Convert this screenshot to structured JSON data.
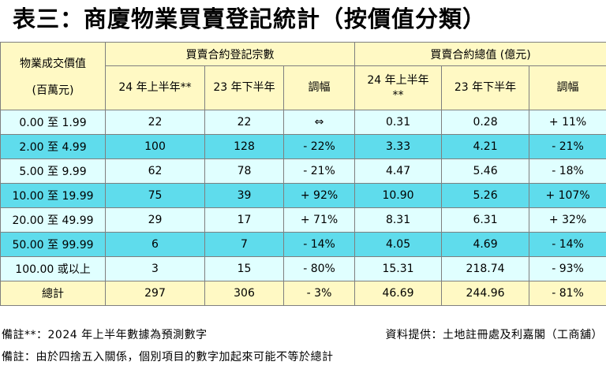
{
  "title": "表三：商廈物業買賣登記統計（按價值分類）",
  "header": {
    "col_value_line1": "物業成交價值",
    "col_value_line2": "(百萬元)",
    "group_count": "買賣合約登記宗數",
    "group_value": "買賣合約總值 (億元)",
    "count_h1_24": "24 年上半年**",
    "count_h2_23": "23 年下半年",
    "count_change": "調幅",
    "value_h1_24_line1": "24 年上半年",
    "value_h1_24_line2": "**",
    "value_h2_23": "23 年下半年",
    "value_change": "調幅"
  },
  "rows": [
    {
      "range": "0.00 至 1.99",
      "count_24h1": "22",
      "count_23h2": "22",
      "count_change": "⇔",
      "value_24h1": "0.31",
      "value_23h2": "0.28",
      "value_change": "+ 11%"
    },
    {
      "range": "2.00 至 4.99",
      "count_24h1": "100",
      "count_23h2": "128",
      "count_change": "- 22%",
      "value_24h1": "3.33",
      "value_23h2": "4.21",
      "value_change": "- 21%"
    },
    {
      "range": "5.00 至 9.99",
      "count_24h1": "62",
      "count_23h2": "78",
      "count_change": "- 21%",
      "value_24h1": "4.47",
      "value_23h2": "5.46",
      "value_change": "- 18%"
    },
    {
      "range": "10.00 至 19.99",
      "count_24h1": "75",
      "count_23h2": "39",
      "count_change": "+ 92%",
      "value_24h1": "10.90",
      "value_23h2": "5.26",
      "value_change": "+ 107%"
    },
    {
      "range": "20.00 至 49.99",
      "count_24h1": "29",
      "count_23h2": "17",
      "count_change": "+ 71%",
      "value_24h1": "8.31",
      "value_23h2": "6.31",
      "value_change": "+ 32%"
    },
    {
      "range": "50.00 至 99.99",
      "count_24h1": "6",
      "count_23h2": "7",
      "count_change": "- 14%",
      "value_24h1": "4.05",
      "value_23h2": "4.69",
      "value_change": "- 14%"
    },
    {
      "range": "100.00 或以上",
      "count_24h1": "3",
      "count_23h2": "15",
      "count_change": "- 80%",
      "value_24h1": "15.31",
      "value_23h2": "218.74",
      "value_change": "- 93%"
    }
  ],
  "total": {
    "label": "總計",
    "count_24h1": "297",
    "count_23h2": "306",
    "count_change": "- 3%",
    "value_24h1": "46.69",
    "value_23h2": "244.96",
    "value_change": "- 81%"
  },
  "notes": {
    "forecast": "備註**：2024 年上半年數據為預測數字",
    "source": "資料提供：土地註冊處及利嘉閣（工商舖）",
    "rounding": "備註：由於四捨五入關係，個別項目的數字加起來可能不等於總計"
  },
  "colors": {
    "header_bg": "#fff9c4",
    "row_light": "#e0ffff",
    "row_dark": "#5fdcec",
    "border": "#7f7f7f"
  }
}
